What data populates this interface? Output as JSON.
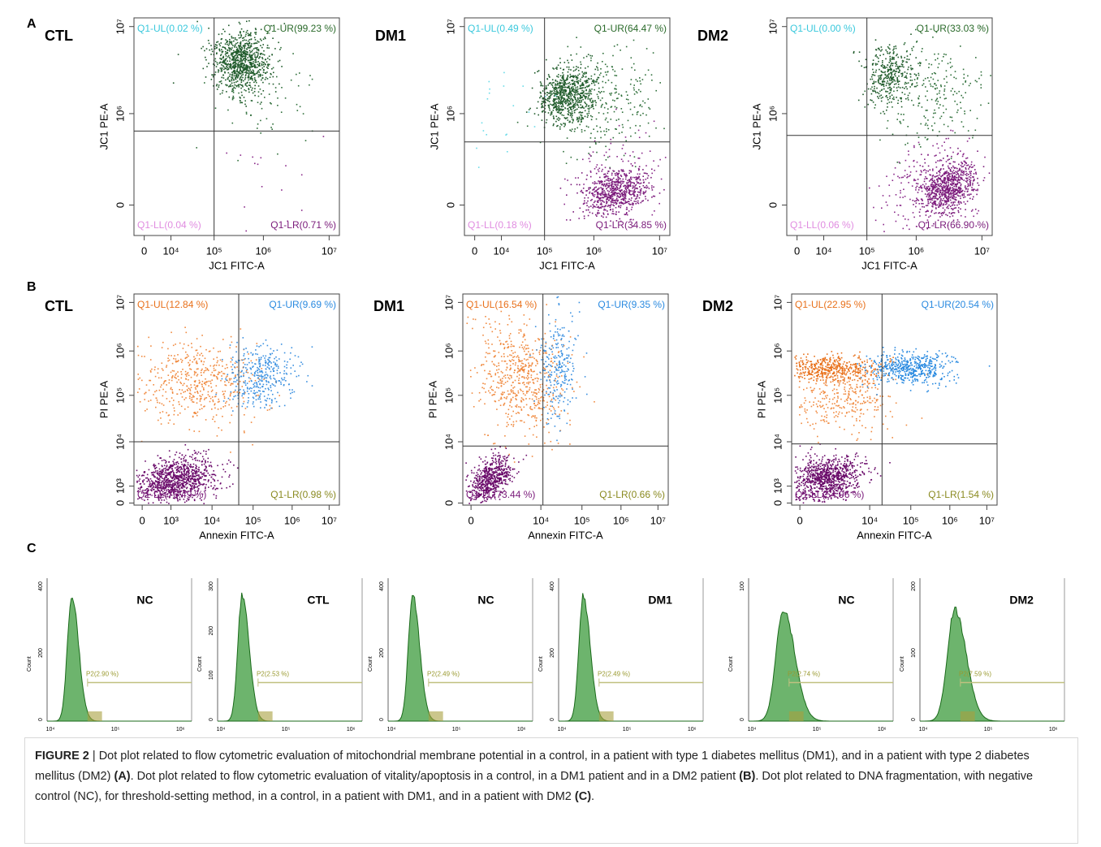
{
  "panels": [
    {
      "letter": "A",
      "plots": [
        {
          "sample": "CTL",
          "quadrants": [
            "Q1-UL(0.02 %)",
            "Q1-UR(99.23 %)",
            "Q1-LL(0.04 %)",
            "Q1-LR(0.71 %)"
          ],
          "x_label": "JC1 FITC-A",
          "y_label": "JC1 PE-A",
          "x_ticks": [
            "0",
            "10⁴",
            "10⁵",
            "10⁶",
            "10⁷"
          ],
          "y_ticks": [
            "10⁷",
            "10⁶",
            "0"
          ]
        },
        {
          "sample": "DM1",
          "quadrants": [
            "Q1-UL(0.49 %)",
            "Q1-UR(64.47 %)",
            "Q1-LL(0.18 %)",
            "Q1-LR(34.85 %)"
          ],
          "x_label": "JC1 FITC-A",
          "y_label": "JC1 PE-A",
          "x_ticks": [
            "0",
            "10⁴",
            "10⁵",
            "10⁶",
            "10⁷"
          ],
          "y_ticks": [
            "10⁷",
            "10⁶",
            "0"
          ]
        },
        {
          "sample": "DM2",
          "quadrants": [
            "Q1-UL(0.00 %)",
            "Q1-UR(33.03 %)",
            "Q1-LL(0.06 %)",
            "Q1-LR(66.90 %)"
          ],
          "x_label": "JC1 FITC-A",
          "y_label": "JC1 PE-A",
          "x_ticks": [
            "0",
            "10⁴",
            "10⁵",
            "10⁶",
            "10⁷"
          ],
          "y_ticks": [
            "10⁷",
            "10⁶",
            "0"
          ]
        }
      ]
    },
    {
      "letter": "B",
      "plots": [
        {
          "sample": "CTL",
          "quadrants": [
            "Q1-UL(12.84 %)",
            "Q1-UR(9.69 %)",
            "Q1-LL(76.49 %)",
            "Q1-LR(0.98 %)"
          ],
          "x_label": "Annexin FITC-A",
          "y_label": "PI PE-A",
          "x_ticks": [
            "0",
            "10³",
            "10⁴",
            "10⁵",
            "10⁶",
            "10⁷"
          ],
          "y_ticks": [
            "10⁷",
            "10⁶",
            "10⁵",
            "10⁴",
            "10³",
            "0"
          ]
        },
        {
          "sample": "DM1",
          "quadrants": [
            "Q1-UL(16.54 %)",
            "Q1-UR(9.35 %)",
            "Q1-LL(73.44 %)",
            "Q1-LR(0.66 %)"
          ],
          "x_label": "Annexin FITC-A",
          "y_label": "PI PE-A",
          "x_ticks": [
            "0",
            "10⁴",
            "10⁵",
            "10⁶",
            "10⁷"
          ],
          "y_ticks": [
            "10⁷",
            "10⁶",
            "10⁵",
            "10⁴",
            "0"
          ]
        },
        {
          "sample": "DM2",
          "quadrants": [
            "Q1-UL(22.95 %)",
            "Q1-UR(20.54 %)",
            "Q1-LL(54.96 %)",
            "Q1-LR(1.54 %)"
          ],
          "x_label": "Annexin FITC-A",
          "y_label": "PI PE-A",
          "x_ticks": [
            "0",
            "10⁴",
            "10⁵",
            "10⁶",
            "10⁷"
          ],
          "y_ticks": [
            "10⁷",
            "10⁶",
            "10⁵",
            "10⁴",
            "10³",
            "0"
          ]
        }
      ]
    },
    {
      "letter": "C",
      "histograms": [
        {
          "sample": "NC",
          "gate": "P2(2.90 %)",
          "y_label": "Count",
          "y_ticks": [
            "400",
            "200",
            "0"
          ],
          "x_ticks": [
            "10⁴",
            "10⁵",
            "10⁶"
          ]
        },
        {
          "sample": "CTL",
          "gate": "P2(2.53 %)",
          "y_label": "Count",
          "y_ticks": [
            "300",
            "200",
            "100",
            "0"
          ],
          "x_ticks": [
            "10⁴",
            "10⁵",
            "10⁶"
          ]
        },
        {
          "sample": "NC",
          "gate": "P2(2.49 %)",
          "y_label": "Count",
          "y_ticks": [
            "400",
            "200",
            "0"
          ],
          "x_ticks": [
            "10⁴",
            "10⁵",
            "10⁶"
          ]
        },
        {
          "sample": "DM1",
          "gate": "P2(2.49 %)",
          "y_label": "Count",
          "y_ticks": [
            "400",
            "200",
            "0"
          ],
          "x_ticks": [
            "10⁴",
            "10⁵",
            "10⁶"
          ]
        },
        {
          "sample": "NC",
          "gate": "P2(2.74 %)",
          "y_label": "Count",
          "y_ticks": [
            "100",
            "0"
          ],
          "x_ticks": [
            "10⁴",
            "10⁵",
            "10⁶"
          ]
        },
        {
          "sample": "DM2",
          "gate": "P2(7.59 %)",
          "y_label": "Count",
          "y_ticks": [
            "200",
            "100",
            "0"
          ],
          "x_ticks": [
            "10⁴",
            "10⁵",
            "10⁶"
          ]
        }
      ]
    }
  ],
  "caption": {
    "label": "FIGURE 2",
    "text_a": " | Dot plot related to flow cytometric evaluation of mitochondrial membrane potential in a control, in a patient with type 1 diabetes mellitus (DM1), and in a patient with type 2 diabetes mellitus (DM2) ",
    "ref_a": "(A)",
    "text_b": ". Dot plot related to flow cytometric evaluation of vitality/apoptosis in a control, in a DM1 patient and in a DM2 patient ",
    "ref_b": "(B)",
    "text_c": ". Dot plot related to DNA fragmentation, with negative control (NC), for threshold-setting method, in a control, in a patient with DM1, and in a patient with DM2 ",
    "ref_c": "(C)",
    "end": "."
  }
}
